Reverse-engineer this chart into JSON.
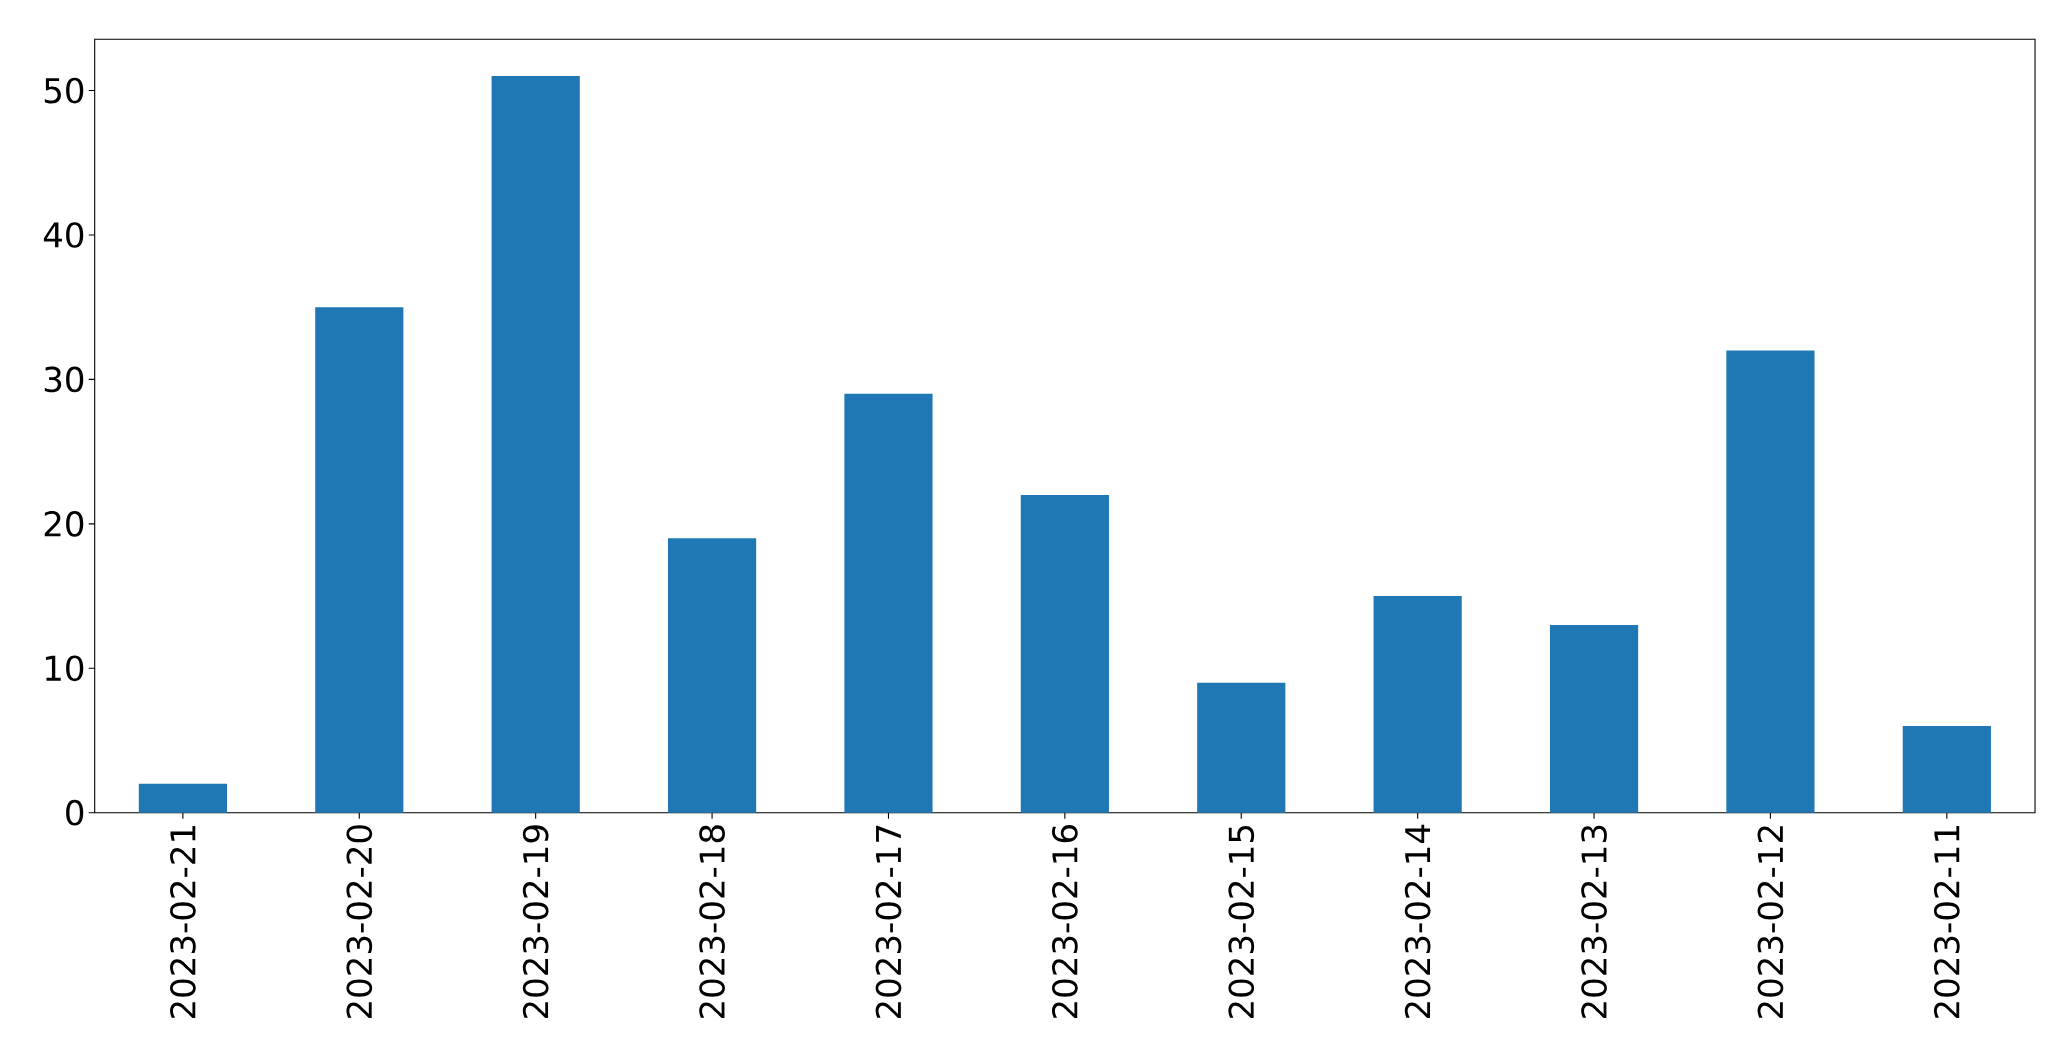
{
  "chart_data": {
    "type": "bar",
    "categories": [
      "2023-02-21",
      "2023-02-20",
      "2023-02-19",
      "2023-02-18",
      "2023-02-17",
      "2023-02-16",
      "2023-02-15",
      "2023-02-14",
      "2023-02-13",
      "2023-02-12",
      "2023-02-11"
    ],
    "values": [
      2,
      35,
      51,
      19,
      29,
      22,
      9,
      15,
      13,
      32,
      6
    ],
    "color": "#1f77b4",
    "ylim": [
      0,
      53.55
    ],
    "yticks": [
      0,
      10,
      20,
      30,
      40,
      50
    ]
  }
}
